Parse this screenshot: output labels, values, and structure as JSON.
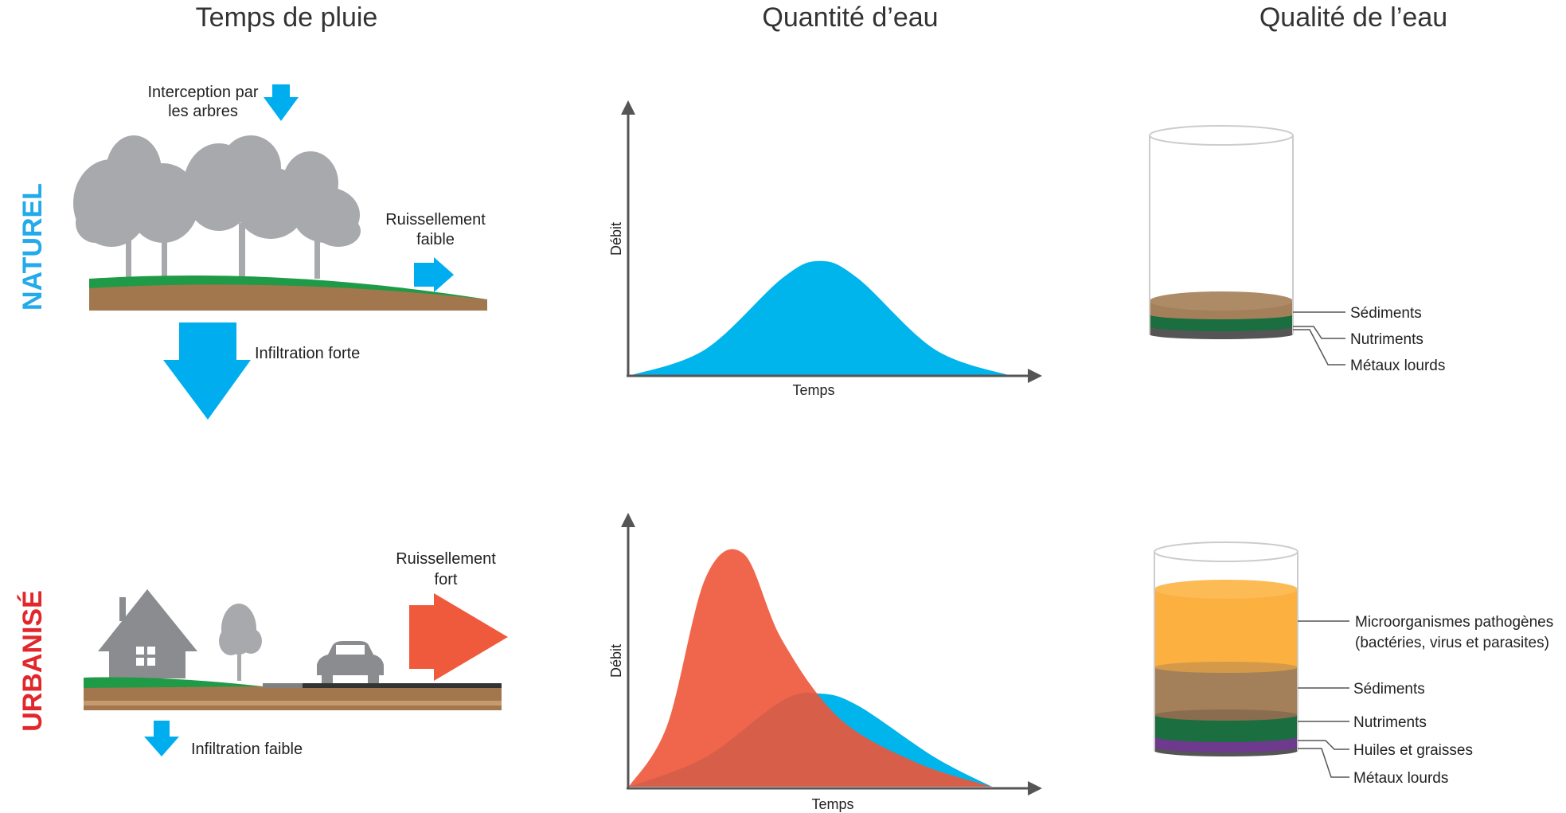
{
  "columns": {
    "rain": "Temps de pluie",
    "quantity": "Quantité d’eau",
    "quality": "Qualité de l’eau"
  },
  "rows": {
    "natural": {
      "label": "NATUREL",
      "color": "#22aaea"
    },
    "urban": {
      "label": "URBANISÉ",
      "color": "#e1272b"
    }
  },
  "natural_scene": {
    "interception": [
      "Interception par",
      "les arbres"
    ],
    "runoff": [
      "Ruissellement",
      "faible"
    ],
    "infiltration": "Infiltration forte"
  },
  "urban_scene": {
    "runoff": [
      "Ruissellement",
      "fort"
    ],
    "infiltration": "Infiltration faible"
  },
  "graphs": {
    "ylabel": "Débit",
    "xlabel": "Temps"
  },
  "chart_data": [
    {
      "type": "area",
      "title": "",
      "xlabel": "Temps",
      "ylabel": "Débit",
      "series": [
        {
          "color": "#00b4ec",
          "x": [
            0,
            0.2,
            0.4,
            0.5,
            0.6,
            0.8,
            1.0
          ],
          "values": [
            0,
            0.15,
            0.55,
            0.65,
            0.55,
            0.15,
            0
          ]
        }
      ]
    },
    {
      "type": "area",
      "title": "",
      "xlabel": "Temps",
      "ylabel": "Débit",
      "series": [
        {
          "color": "#00b4ec",
          "x": [
            0,
            0.2,
            0.4,
            0.5,
            0.6,
            0.8,
            0.95
          ],
          "values": [
            0,
            0.12,
            0.35,
            0.38,
            0.33,
            0.12,
            0
          ]
        },
        {
          "color": "#ee5538",
          "x": [
            0,
            0.1,
            0.2,
            0.3,
            0.4,
            0.55,
            0.75,
            0.95
          ],
          "values": [
            0,
            0.25,
            0.85,
            0.95,
            0.6,
            0.28,
            0.1,
            0
          ]
        }
      ]
    }
  ],
  "quality": {
    "natural_layers": [
      "Sédiments",
      "Nutriments",
      "Métaux lourds"
    ],
    "urban_layers": [
      "Microorganismes pathogènes",
      "(bactéries, virus et parasites)",
      "Sédiments",
      "Nutriments",
      "Huiles et graisses",
      "Métaux lourds"
    ]
  },
  "colors": {
    "arrow_blue": "#00aeef",
    "arrow_red": "#ef5a3c",
    "tree_gray": "#a7a9ac",
    "grass": "#1f9a47",
    "soil": "#a3774d",
    "road": "#333333",
    "sediment": "#a4805a",
    "nutrient": "#1b6e3f",
    "pathogen": "#fbb040",
    "oil": "#6d3a8d",
    "metal": "#555555"
  }
}
